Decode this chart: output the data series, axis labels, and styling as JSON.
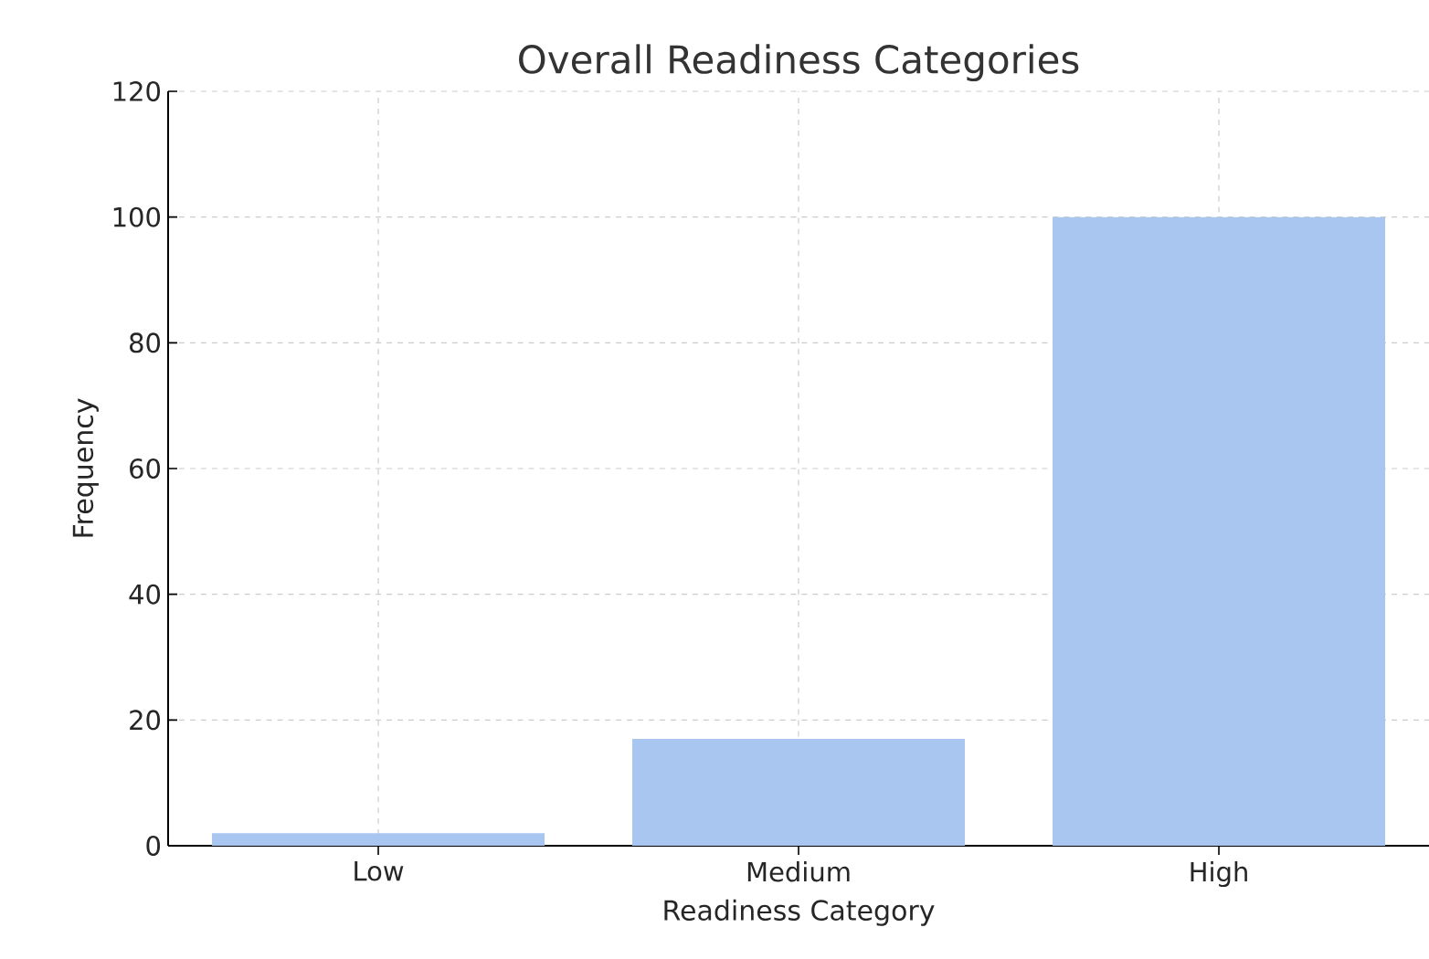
{
  "chart_data": {
    "type": "bar",
    "title": "Overall Readiness Categories",
    "xlabel": "Readiness Category",
    "ylabel": "Frequency",
    "categories": [
      "Low",
      "Medium",
      "High"
    ],
    "values": [
      2,
      17,
      100
    ],
    "color": "#a9c6f0",
    "ylim": [
      0,
      120
    ],
    "yticks": [
      0,
      20,
      40,
      60,
      80,
      100,
      120
    ],
    "grid": true
  }
}
